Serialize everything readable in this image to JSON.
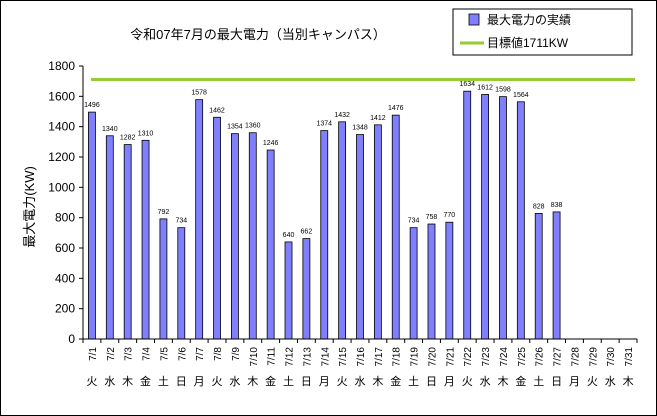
{
  "chart_data": {
    "type": "bar",
    "title": "令和07年7月の最大電力（当別キャンパス）",
    "ylabel": "最大電力(KW)",
    "xlabel": "",
    "ylim": [
      0,
      1800
    ],
    "yticks": [
      0,
      200,
      400,
      600,
      800,
      1000,
      1200,
      1400,
      1600,
      1800
    ],
    "categories": [
      "7/1",
      "7/2",
      "7/3",
      "7/4",
      "7/5",
      "7/6",
      "7/7",
      "7/8",
      "7/9",
      "7/10",
      "7/11",
      "7/12",
      "7/13",
      "7/14",
      "7/15",
      "7/16",
      "7/17",
      "7/18",
      "7/19",
      "7/20",
      "7/21",
      "7/22",
      "7/23",
      "7/24",
      "7/25",
      "7/26",
      "7/27",
      "7/28",
      "7/29",
      "7/30",
      "7/31"
    ],
    "weekdays": [
      "火",
      "水",
      "木",
      "金",
      "土",
      "日",
      "月",
      "火",
      "水",
      "木",
      "金",
      "土",
      "日",
      "月",
      "火",
      "水",
      "木",
      "金",
      "土",
      "日",
      "月",
      "火",
      "水",
      "木",
      "金",
      "土",
      "日",
      "月",
      "火",
      "水",
      "木"
    ],
    "series": [
      {
        "name": "最大電力の実績",
        "color": "#8080ff",
        "values": [
          1496,
          1340,
          1282,
          1310,
          792,
          734,
          1578,
          1462,
          1354,
          1360,
          1246,
          640,
          662,
          1374,
          1432,
          1348,
          1412,
          1476,
          734,
          758,
          770,
          1634,
          1612,
          1598,
          1564,
          828,
          838,
          null,
          null,
          null,
          null
        ]
      }
    ],
    "target": {
      "name": "目標値1711KW",
      "value": 1711,
      "color": "#99cc33"
    },
    "grid": false,
    "legend_position": "top-right"
  }
}
